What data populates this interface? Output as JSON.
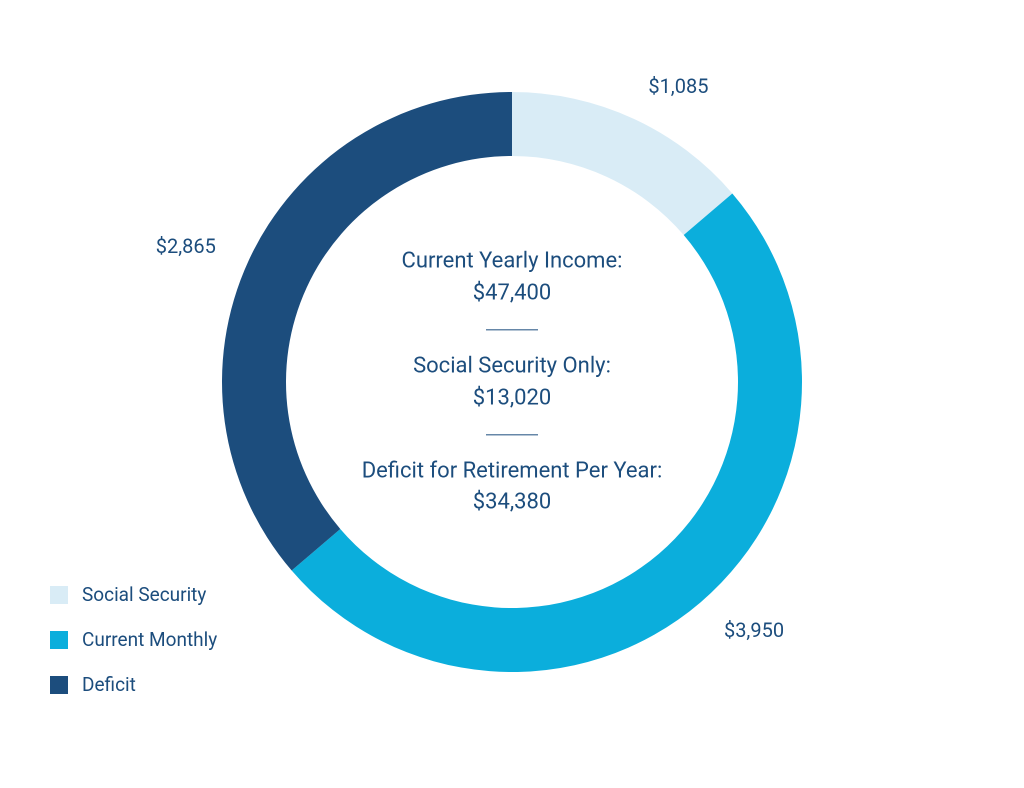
{
  "chart": {
    "type": "donut",
    "outer_radius": 290,
    "inner_radius": 226,
    "background_color": "#ffffff",
    "text_color": "#1c4d7d",
    "divider_color": "#1c4d7d",
    "slices": [
      {
        "name": "Social Security",
        "value": 1085,
        "label": "$1,085",
        "color": "#d9ecf6"
      },
      {
        "name": "Current Monthly",
        "value": 3950,
        "label": "$3,950",
        "color": "#0baedc"
      },
      {
        "name": "Deficit",
        "value": 2865,
        "label": "$2,865",
        "color": "#1c4d7d"
      }
    ],
    "center": {
      "blocks": [
        {
          "title": "Current Yearly Income:",
          "value": "$47,400"
        },
        {
          "title": "Social Security Only:",
          "value": "$13,020"
        },
        {
          "title": "Deficit for Retirement Per Year:",
          "value": "$34,380"
        }
      ],
      "fontsize": 22
    },
    "label_fontsize": 20,
    "legend": {
      "items": [
        {
          "label": "Social Security",
          "color": "#d9ecf6"
        },
        {
          "label": "Current Monthly",
          "color": "#0baedc"
        },
        {
          "label": "Deficit",
          "color": "#1c4d7d"
        }
      ],
      "fontsize": 19,
      "text_color": "#1c4d7d"
    }
  }
}
